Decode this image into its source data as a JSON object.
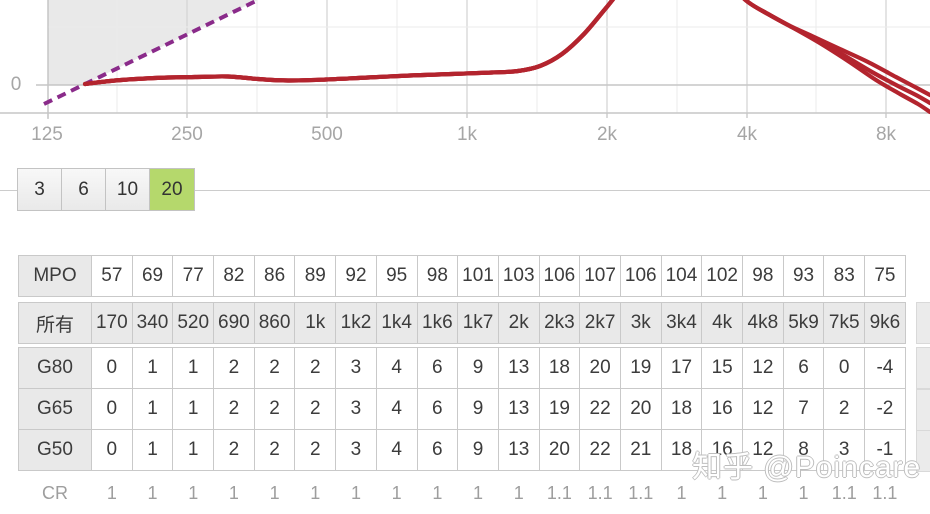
{
  "chart": {
    "y_zero_label": "0",
    "x_ticks": [
      "125",
      "250",
      "500",
      "1k",
      "2k",
      "4k",
      "8k"
    ],
    "colors": {
      "curve": "#b3242e",
      "target_dashed": "#8a2b8a",
      "fill": "#e9e9e9",
      "grid_major": "#d6d6d6",
      "grid_minor": "#ebebeb",
      "axis": "#c6c6c6"
    },
    "curves": {
      "shared": [
        [
          85,
          84
        ],
        [
          115,
          80.5
        ],
        [
          155,
          78
        ],
        [
          195,
          77
        ],
        [
          228,
          76.5
        ],
        [
          258,
          79
        ],
        [
          288,
          80.5
        ],
        [
          326,
          79.5
        ],
        [
          368,
          77.5
        ],
        [
          410,
          75.5
        ],
        [
          452,
          74
        ],
        [
          492,
          72.5
        ],
        [
          518,
          71
        ],
        [
          540,
          66
        ],
        [
          562,
          54
        ],
        [
          584,
          34
        ],
        [
          606,
          8
        ],
        [
          628,
          -18
        ],
        [
          652,
          -34
        ],
        [
          678,
          -41
        ],
        [
          704,
          -33
        ],
        [
          726,
          -18
        ],
        [
          748,
          2
        ],
        [
          768,
          14
        ],
        [
          788,
          25
        ]
      ],
      "tail_upper": [
        [
          812,
          36
        ],
        [
          840,
          49
        ],
        [
          868,
          62
        ],
        [
          896,
          77
        ],
        [
          915,
          87
        ],
        [
          930,
          95
        ]
      ],
      "tail_mid": [
        [
          815,
          39
        ],
        [
          845,
          56
        ],
        [
          872,
          72
        ],
        [
          898,
          86
        ],
        [
          916,
          95
        ],
        [
          930,
          103
        ]
      ],
      "tail_lower": [
        [
          818,
          42
        ],
        [
          848,
          61
        ],
        [
          876,
          80
        ],
        [
          900,
          94
        ],
        [
          918,
          104
        ],
        [
          930,
          112
        ]
      ],
      "target_line": [
        [
          44,
          104
        ],
        [
          258,
          0
        ]
      ],
      "fill_polygon": [
        [
          48,
          0
        ],
        [
          258,
          0
        ],
        [
          83,
          85
        ],
        [
          48,
          85
        ]
      ]
    }
  },
  "chart_data": {
    "type": "line",
    "x_axis": "frequency (Hz)",
    "x_tick_labels": [
      "125",
      "250",
      "500",
      "1k",
      "2k",
      "4k",
      "8k"
    ],
    "y_visible_tick": 0,
    "note": "gain curves; red curves rise to an off-screen peak between 2k and 4k then split into three branches falling past 8k; purple dashed diagonal target line with gray shaded region above it at low frequencies"
  },
  "selector": {
    "options": [
      "3",
      "6",
      "10",
      "20"
    ],
    "selected": "20",
    "active_color": "#b5d86c"
  },
  "table": {
    "rows": [
      {
        "label": "MPO",
        "values": [
          "57",
          "69",
          "77",
          "82",
          "86",
          "89",
          "92",
          "95",
          "98",
          "101",
          "103",
          "106",
          "107",
          "106",
          "104",
          "102",
          "98",
          "93",
          "83",
          "75"
        ]
      },
      {
        "label": "所有",
        "values": [
          "170",
          "340",
          "520",
          "690",
          "860",
          "1k",
          "1k2",
          "1k4",
          "1k6",
          "1k7",
          "2k",
          "2k3",
          "2k7",
          "3k",
          "3k4",
          "4k",
          "4k8",
          "5k9",
          "7k5",
          "9k6"
        ]
      },
      {
        "label": "G80",
        "values": [
          "0",
          "1",
          "1",
          "2",
          "2",
          "2",
          "3",
          "4",
          "6",
          "9",
          "13",
          "18",
          "20",
          "19",
          "17",
          "15",
          "12",
          "6",
          "0",
          "-4"
        ]
      },
      {
        "label": "G65",
        "values": [
          "0",
          "1",
          "1",
          "2",
          "2",
          "2",
          "3",
          "4",
          "6",
          "9",
          "13",
          "19",
          "22",
          "20",
          "18",
          "16",
          "12",
          "7",
          "2",
          "-2"
        ]
      },
      {
        "label": "G50",
        "values": [
          "0",
          "1",
          "1",
          "2",
          "2",
          "2",
          "3",
          "4",
          "6",
          "9",
          "13",
          "20",
          "22",
          "21",
          "18",
          "16",
          "12",
          "8",
          "3",
          "-1"
        ]
      },
      {
        "label": "CR",
        "values": [
          "1",
          "1",
          "1",
          "1",
          "1",
          "1",
          "1",
          "1",
          "1",
          "1",
          "1",
          "1.1",
          "1.1",
          "1.1",
          "1",
          "1",
          "1",
          "1",
          "1.1",
          "1.1"
        ]
      }
    ]
  },
  "watermark": "知乎 @Poincare"
}
